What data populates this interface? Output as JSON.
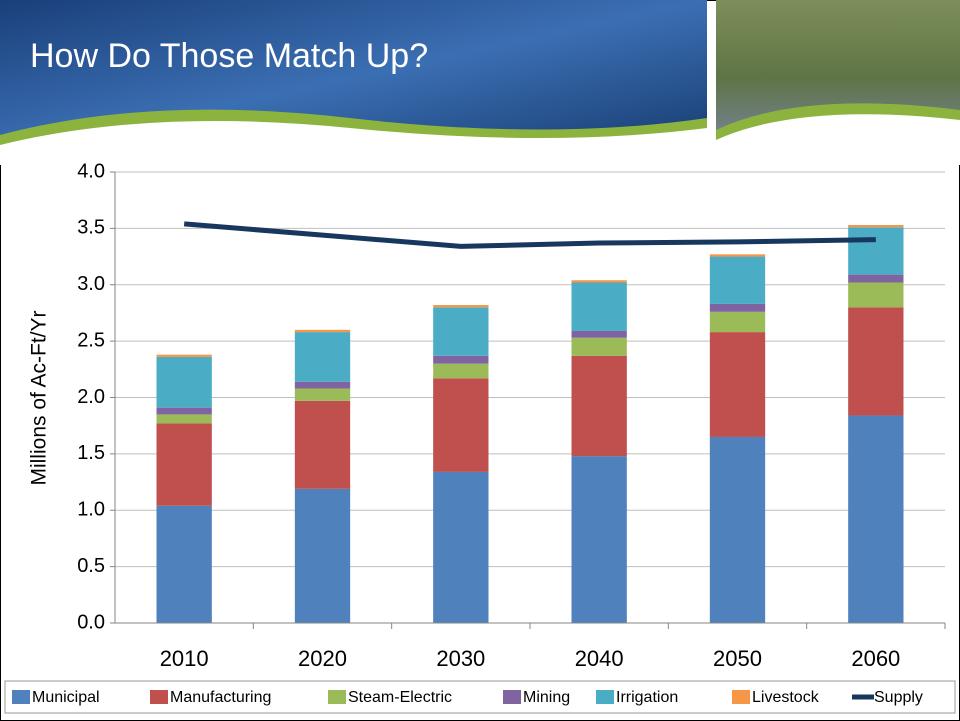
{
  "chart_data": {
    "type": "bar",
    "stacked": true,
    "title": "How Do Those Match Up?",
    "y_label": "Millions of Ac-Ft/Yr",
    "categories": [
      "2010",
      "2020",
      "2030",
      "2040",
      "2050",
      "2060"
    ],
    "series": [
      {
        "name": "Municipal",
        "color": "#4f81bd",
        "values": [
          1.04,
          1.19,
          1.34,
          1.48,
          1.65,
          1.84
        ]
      },
      {
        "name": "Manufacturing",
        "color": "#c0504d",
        "values": [
          0.73,
          0.78,
          0.83,
          0.89,
          0.93,
          0.96
        ]
      },
      {
        "name": "Steam-Electric",
        "color": "#9bbb59",
        "values": [
          0.08,
          0.11,
          0.13,
          0.16,
          0.18,
          0.22
        ]
      },
      {
        "name": "Mining",
        "color": "#8064a2",
        "values": [
          0.06,
          0.06,
          0.07,
          0.06,
          0.07,
          0.07
        ]
      },
      {
        "name": "Irrigation",
        "color": "#4bacc6",
        "values": [
          0.45,
          0.44,
          0.43,
          0.43,
          0.42,
          0.42
        ]
      },
      {
        "name": "Livestock",
        "color": "#f79646",
        "values": [
          0.02,
          0.02,
          0.02,
          0.02,
          0.02,
          0.02
        ]
      },
      {
        "name": "Supply",
        "color": "#17375e",
        "type": "line",
        "values": [
          3.54,
          3.44,
          3.34,
          3.37,
          3.38,
          3.4
        ]
      }
    ],
    "ylim": [
      0,
      4
    ],
    "yticks": [
      {
        "value": 0,
        "label": "0.0"
      },
      0.5,
      {
        "value": 1,
        "label": "1.0"
      },
      1.5,
      {
        "value": 2,
        "label": "2.0"
      },
      2.5,
      {
        "value": 3,
        "label": "3.0"
      },
      3.5,
      {
        "value": 4,
        "label": "4.0"
      }
    ],
    "grid": true,
    "legend": "bottom"
  }
}
